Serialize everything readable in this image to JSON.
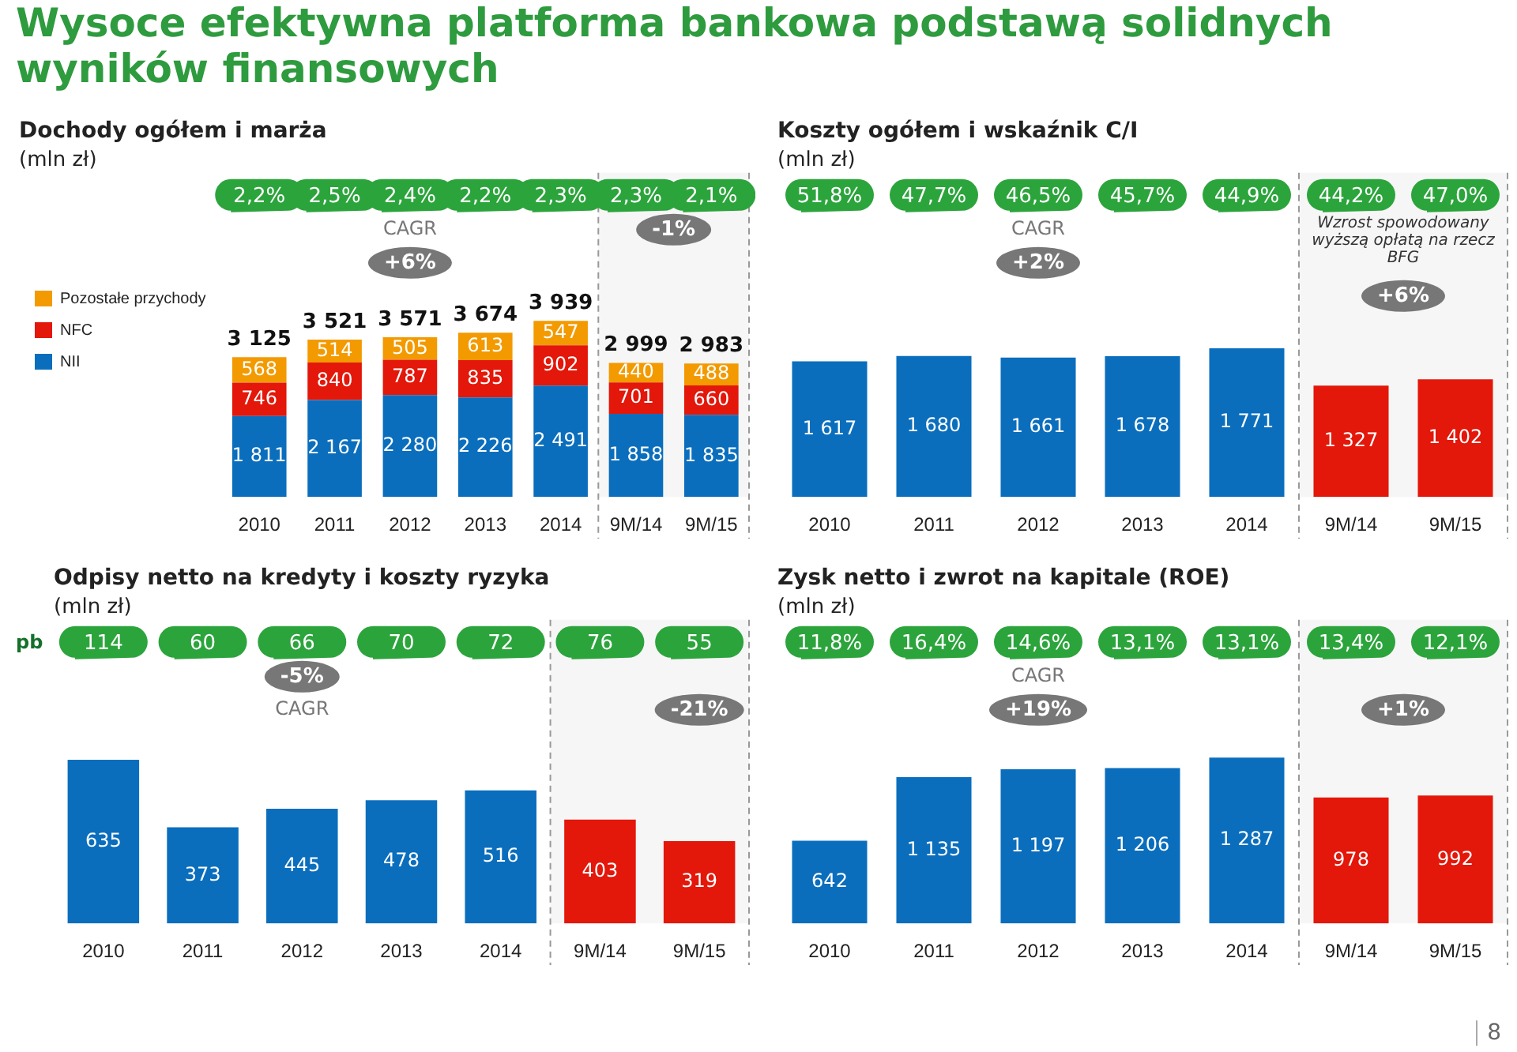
{
  "chart_data": [
    {
      "type": "bar",
      "title": "Wysoce efektywna platforma bankowa podstawą solidnych wyników finansowych",
      "subtitle": "Dochody ogółem i marża",
      "ylabel": "(mln zł)",
      "categories": [
        "2010",
        "2011",
        "2012",
        "2013",
        "2014",
        "9M/14",
        "9M/15"
      ],
      "stacked": true,
      "legend": "top left",
      "tick_labels": "x",
      "data_labels": true,
      "series": [
        {
          "name": "NII",
          "color": "#0a6ebd",
          "values": [
            1811,
            2167,
            2280,
            2226,
            2491,
            1858,
            1835
          ]
        },
        {
          "name": "NFC",
          "color": "#e3170a",
          "values": [
            746,
            840,
            787,
            835,
            902,
            701,
            660
          ]
        },
        {
          "name": "Pozostałe przychody",
          "color": "#f39a00",
          "values": [
            568,
            514,
            505,
            613,
            547,
            440,
            488
          ]
        }
      ],
      "totals": [
        "3 125",
        "3 521",
        "3 571",
        "3 674",
        "3 939",
        "2 999",
        "2 983"
      ],
      "bands": [
        {
          "axis": "x",
          "from": "9M/14",
          "to": "9M/15"
        }
      ],
      "annotations": [
        "2,2%",
        "2,5%",
        "2,4%",
        "2,2%",
        "2,3%",
        "2,3%",
        "2,1%",
        "CAGR",
        "+6%",
        "-1%"
      ]
    },
    {
      "type": "bar",
      "title": "Koszty ogółem i wskaźnik C/I",
      "ylabel": "(mln zł)",
      "categories": [
        "2010",
        "2011",
        "2012",
        "2013",
        "2014",
        "9M/14",
        "9M/15"
      ],
      "tick_labels": "x",
      "data_labels": true,
      "values": [
        1617,
        1680,
        1661,
        1678,
        1771,
        1327,
        1402
      ],
      "colors": [
        "#0a6ebd",
        "#0a6ebd",
        "#0a6ebd",
        "#0a6ebd",
        "#0a6ebd",
        "#e3170a",
        "#e3170a"
      ],
      "bands": [
        {
          "axis": "x",
          "from": "9M/14",
          "to": "9M/15"
        }
      ],
      "annotations": [
        "51,8%",
        "47,7%",
        "46,5%",
        "45,7%",
        "44,9%",
        "44,2%",
        "47,0%",
        "CAGR",
        "+2%",
        "Wzrost spowodowany wyższą opłatą na rzecz BFG",
        "+6%"
      ]
    },
    {
      "type": "bar",
      "title": "Odpisy netto na kredyty i koszty ryzyka",
      "ylabel": "(mln zł)",
      "categories": [
        "2010",
        "2011",
        "2012",
        "2013",
        "2014",
        "9M/14",
        "9M/15"
      ],
      "tick_labels": "x",
      "data_labels": true,
      "values": [
        635,
        373,
        445,
        478,
        516,
        403,
        319
      ],
      "colors": [
        "#0a6ebd",
        "#0a6ebd",
        "#0a6ebd",
        "#0a6ebd",
        "#0a6ebd",
        "#e3170a",
        "#e3170a"
      ],
      "bands": [
        {
          "axis": "x",
          "from": "9M/14",
          "to": "9M/15"
        }
      ],
      "annotations": [
        "pb",
        "114",
        "60",
        "66",
        "70",
        "72",
        "76",
        "55",
        "-5%",
        "CAGR",
        "-21%"
      ]
    },
    {
      "type": "bar",
      "title": "Zysk netto i zwrot na kapitale (ROE)",
      "ylabel": "(mln zł)",
      "categories": [
        "2010",
        "2011",
        "2012",
        "2013",
        "2014",
        "9M/14",
        "9M/15"
      ],
      "tick_labels": "x",
      "data_labels": true,
      "values": [
        642,
        1135,
        1197,
        1206,
        1287,
        978,
        992
      ],
      "colors": [
        "#0a6ebd",
        "#0a6ebd",
        "#0a6ebd",
        "#0a6ebd",
        "#0a6ebd",
        "#e3170a",
        "#e3170a"
      ],
      "bands": [
        {
          "axis": "x",
          "from": "9M/14",
          "to": "9M/15"
        }
      ],
      "annotations": [
        "8",
        "11,8%",
        "16,4%",
        "14,6%",
        "13,1%",
        "13,1%",
        "13,4%",
        "12,1%",
        "CAGR",
        "+19%",
        "+1%"
      ]
    }
  ]
}
